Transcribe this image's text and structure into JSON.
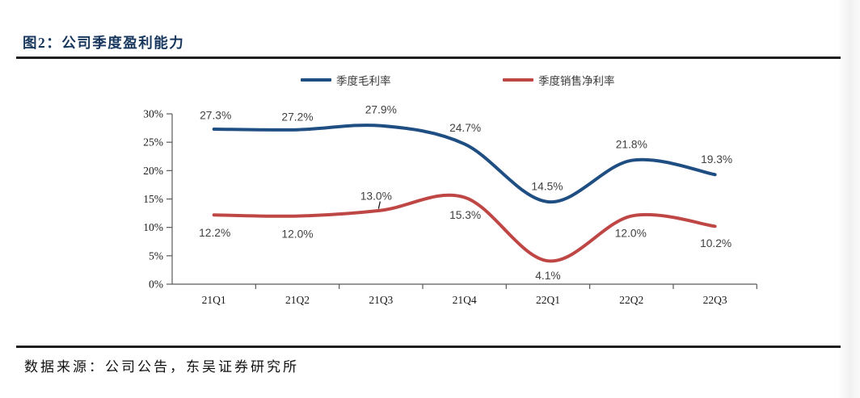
{
  "header": {
    "title": "图2：公司季度盈利能力"
  },
  "footer": {
    "source": "数据来源：公司公告，东吴证券研究所"
  },
  "chart_data": {
    "type": "line",
    "title": "",
    "xlabel": "",
    "ylabel": "",
    "categories": [
      "21Q1",
      "21Q2",
      "21Q3",
      "21Q4",
      "22Q1",
      "22Q2",
      "22Q3"
    ],
    "series": [
      {
        "name": "季度毛利率",
        "color": "#1F4E82",
        "values": [
          27.3,
          27.2,
          27.9,
          24.7,
          14.5,
          21.8,
          19.3
        ],
        "data_labels": [
          "27.3%",
          "27.2%",
          "27.9%",
          "24.7%",
          "14.5%",
          "21.8%",
          "19.3%"
        ],
        "label_dx": [
          2,
          0,
          0,
          1,
          -1,
          0,
          2
        ],
        "label_dy": [
          -17,
          -16,
          -20,
          -20,
          -19,
          -20,
          -19
        ],
        "leader_index": -1
      },
      {
        "name": "季度销售净利率",
        "color": "#BE4745",
        "values": [
          12.2,
          12.0,
          13.0,
          15.3,
          4.1,
          12.0,
          10.2
        ],
        "data_labels": [
          "12.2%",
          "12.0%",
          "13.0%",
          "15.3%",
          "4.1%",
          "12.0%",
          "10.2%"
        ],
        "label_dx": [
          1,
          0,
          -6,
          1,
          0,
          -1,
          1
        ],
        "label_dy": [
          22,
          22,
          -18,
          22,
          18,
          21,
          21
        ],
        "leader_index": 2
      }
    ],
    "ylim": [
      0,
      30
    ],
    "ytick_step": 5,
    "ytick_labels": [
      "0%",
      "5%",
      "10%",
      "15%",
      "20%",
      "25%",
      "30%"
    ],
    "grid": false,
    "legend_position": "top-center",
    "smooth_lines": true,
    "axis_color": "#595959",
    "tick_label_color": "#1a1a1a",
    "data_label_color": "#404040"
  }
}
